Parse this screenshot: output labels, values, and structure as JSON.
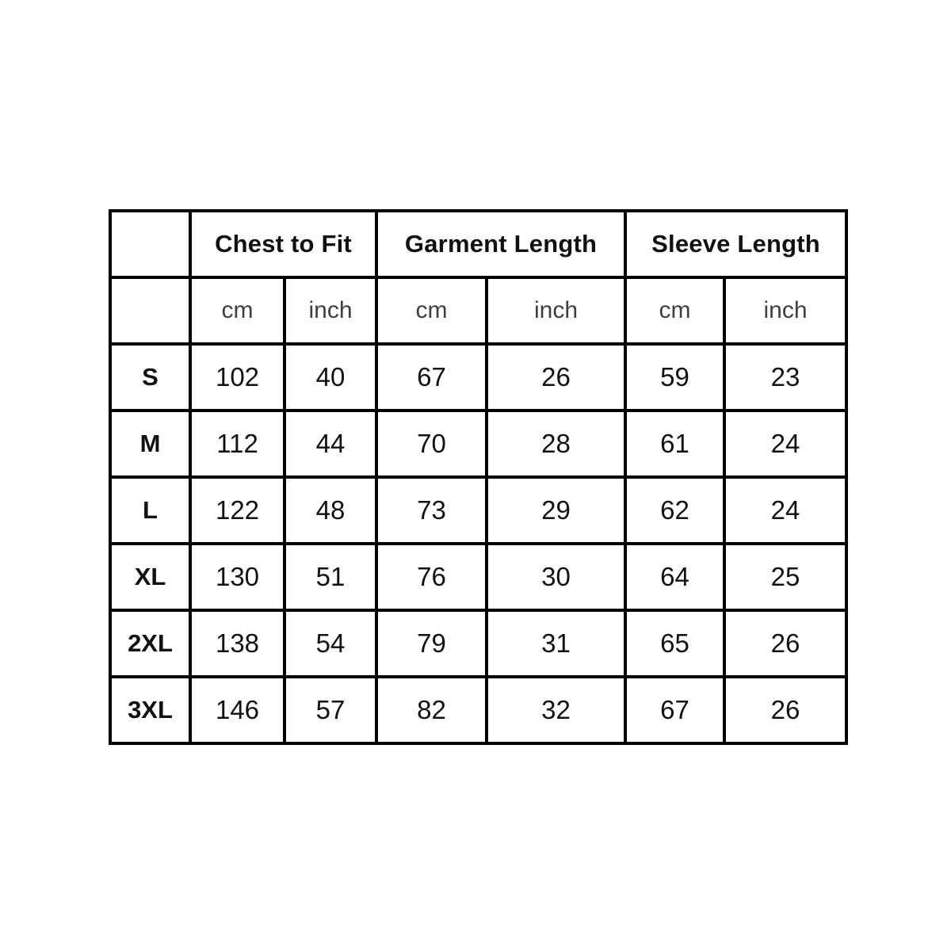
{
  "colors": {
    "background": "#ffffff",
    "border": "#000000",
    "header_text": "#111111",
    "unit_text": "#3f3f3f",
    "value_text": "#111111"
  },
  "table": {
    "group_headers": [
      {
        "label": "Chest to Fit"
      },
      {
        "label": "Garment Length"
      },
      {
        "label": "Sleeve Length"
      }
    ],
    "unit_headers": [
      "cm",
      "inch",
      "cm",
      "inch",
      "cm",
      "inch"
    ],
    "rows": [
      {
        "size": "S",
        "values": [
          102,
          40,
          67,
          26,
          59,
          23
        ]
      },
      {
        "size": "M",
        "values": [
          112,
          44,
          70,
          28,
          61,
          24
        ]
      },
      {
        "size": "L",
        "values": [
          122,
          48,
          73,
          29,
          62,
          24
        ]
      },
      {
        "size": "XL",
        "values": [
          130,
          51,
          76,
          30,
          64,
          25
        ]
      },
      {
        "size": "2XL",
        "values": [
          138,
          54,
          79,
          31,
          65,
          26
        ]
      },
      {
        "size": "3XL",
        "values": [
          146,
          57,
          82,
          32,
          67,
          26
        ]
      }
    ]
  }
}
